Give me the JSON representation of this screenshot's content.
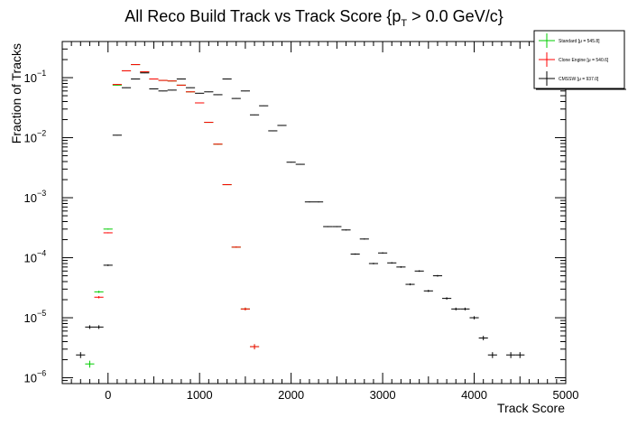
{
  "chart_data": {
    "type": "scatter",
    "title_main": "All Reco Build Track vs Track Score {p",
    "title_sub": "T",
    "title_end": " > 0.0 GeV/c}",
    "xlabel": "Track Score",
    "ylabel": "Fraction of Tracks",
    "xlim": [
      -500,
      5000
    ],
    "ylim": [
      8e-07,
      0.4
    ],
    "yscale": "log",
    "bin_width": 100,
    "x_ticks": [
      "0",
      "1000",
      "2000",
      "3000",
      "4000",
      "5000"
    ],
    "x_tick_values": [
      0,
      1000,
      2000,
      3000,
      4000,
      5000
    ],
    "y_ticks": [
      {
        "base": "10",
        "exp": "−6",
        "value": 1e-06
      },
      {
        "base": "10",
        "exp": "−5",
        "value": 1e-05
      },
      {
        "base": "10",
        "exp": "−4",
        "value": 0.0001
      },
      {
        "base": "10",
        "exp": "−3",
        "value": 0.001
      },
      {
        "base": "10",
        "exp": "−2",
        "value": 0.01
      },
      {
        "base": "10",
        "exp": "−1",
        "value": 0.1
      }
    ],
    "grid": false,
    "legend_position": "top-right",
    "series": [
      {
        "name": "Standard  [μ = 545.8]",
        "color": "#00cc00",
        "x": [
          -200,
          -100,
          0,
          100,
          200,
          300,
          400,
          500,
          600,
          700,
          800,
          900,
          1000,
          1100,
          1200,
          1300,
          1400,
          1500,
          1600
        ],
        "y": [
          1.7e-06,
          2.7e-05,
          0.0003,
          0.075,
          0.13,
          0.165,
          0.125,
          0.095,
          0.09,
          0.088,
          0.075,
          0.058,
          0.038,
          0.018,
          0.0078,
          0.00165,
          0.00015,
          1.4e-05,
          3.3e-06
        ]
      },
      {
        "name": "Clone Engine  [μ = 540.6]",
        "color": "#ff0000",
        "x": [
          -100,
          0,
          100,
          200,
          300,
          400,
          500,
          600,
          700,
          800,
          900,
          1000,
          1100,
          1200,
          1300,
          1400,
          1500,
          1600,
          1700
        ],
        "y": [
          2.2e-05,
          0.00026,
          0.077,
          0.13,
          0.165,
          0.125,
          0.095,
          0.09,
          0.088,
          0.075,
          0.058,
          0.038,
          0.018,
          0.0078,
          0.00165,
          0.00015,
          1.4e-05,
          3.3e-06,
          0
        ]
      },
      {
        "name": "CMSSW  [μ = 937.0]",
        "color": "#000000",
        "x": [
          -300,
          -200,
          -100,
          0,
          100,
          200,
          300,
          400,
          500,
          600,
          700,
          800,
          900,
          1000,
          1100,
          1200,
          1300,
          1400,
          1500,
          1600,
          1700,
          1800,
          1900,
          2000,
          2100,
          2200,
          2300,
          2400,
          2500,
          2600,
          2700,
          2800,
          2900,
          3000,
          3100,
          3200,
          3300,
          3400,
          3500,
          3600,
          3700,
          3800,
          3900,
          4000,
          4100,
          4200,
          4300,
          4400,
          4500,
          4600,
          4700,
          4800
        ],
        "y": [
          2.4e-06,
          7e-06,
          7e-06,
          7.5e-05,
          0.011,
          0.068,
          0.095,
          0.12,
          0.065,
          0.06,
          0.062,
          0.095,
          0.068,
          0.055,
          0.058,
          0.052,
          0.095,
          0.045,
          0.06,
          0.024,
          0.034,
          0.013,
          0.016,
          0.0039,
          0.0036,
          0.00085,
          0.00085,
          0.00033,
          0.00033,
          0.00029,
          0.000115,
          0.000205,
          8e-05,
          0.00012,
          8.2e-05,
          7e-05,
          3.6e-05,
          6e-05,
          2.8e-05,
          5e-05,
          2.1e-05,
          1.4e-05,
          1.4e-05,
          1e-05,
          4.6e-06,
          2.4e-06,
          0,
          2.4e-06,
          2.4e-06,
          0,
          0,
          0
        ]
      }
    ]
  }
}
